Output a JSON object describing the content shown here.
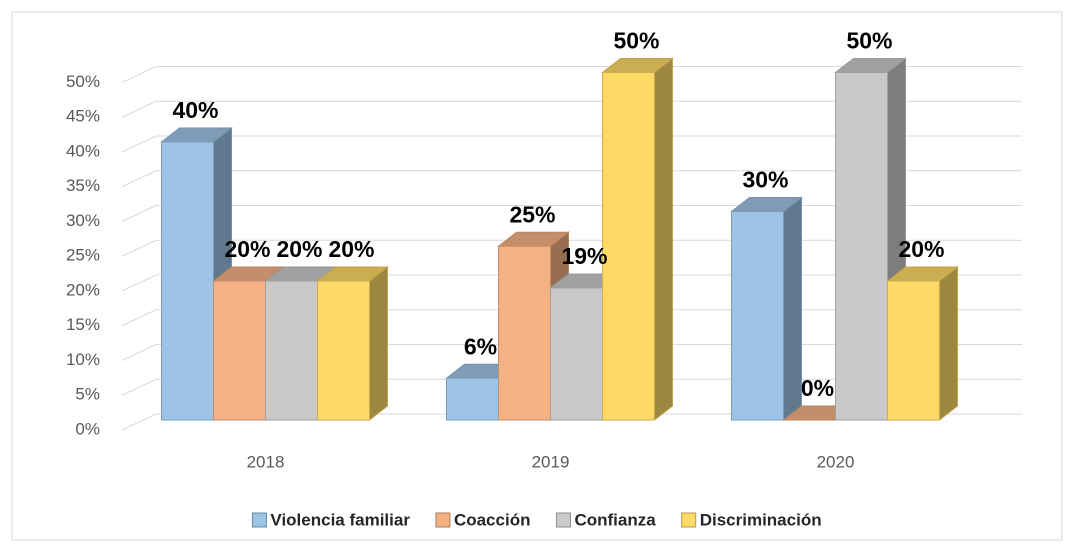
{
  "chart_data": {
    "type": "bar3d",
    "categories": [
      "2018",
      "2019",
      "2020"
    ],
    "series": [
      {
        "name": "Violencia familiar",
        "color": "#9dc3e6",
        "values": [
          40,
          6,
          30
        ],
        "value_labels": [
          "40%",
          "6%",
          "30%"
        ]
      },
      {
        "name": "Coacción",
        "color": "#f4b183",
        "values": [
          20,
          25,
          0
        ],
        "value_labels": [
          "20%",
          "25%",
          "0%"
        ]
      },
      {
        "name": "Confianza",
        "color": "#c9c9c9",
        "values": [
          20,
          19,
          50
        ],
        "value_labels": [
          "20%",
          "19%",
          "50%"
        ]
      },
      {
        "name": "Discriminación",
        "color": "#ffd966",
        "values": [
          20,
          50,
          20
        ],
        "value_labels": [
          "20%",
          "50%",
          "20%"
        ]
      }
    ],
    "ylim": [
      0,
      50
    ],
    "yticks": [
      {
        "value": 0,
        "label": "0%"
      },
      {
        "value": 5,
        "label": "5%"
      },
      {
        "value": 10,
        "label": "10%"
      },
      {
        "value": 15,
        "label": "15%"
      },
      {
        "value": 20,
        "label": "20%"
      },
      {
        "value": 25,
        "label": "25%"
      },
      {
        "value": 30,
        "label": "30%"
      },
      {
        "value": 35,
        "label": "35%"
      },
      {
        "value": 40,
        "label": "40%"
      },
      {
        "value": 45,
        "label": "45%"
      },
      {
        "value": 50,
        "label": "50%"
      }
    ],
    "grid": true,
    "legend": "bottom"
  }
}
